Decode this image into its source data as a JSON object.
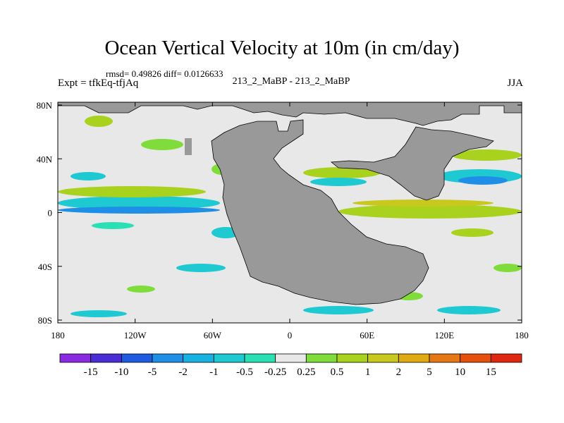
{
  "header": {
    "title": "Ocean Vertical Velocity at 10m (in cm/day)",
    "stats": "rmsd= 0.49826 diff= 0.0126633",
    "expt": "Expt = tfkEq-tfjAq",
    "case": "213_2_MaBP - 213_2_MaBP",
    "season": "JJA"
  },
  "chart_data": {
    "type": "heatmap",
    "title": "Ocean Vertical Velocity at 10m (in cm/day)",
    "x_ticks": [
      "180",
      "120W",
      "60W",
      "0",
      "60E",
      "120E",
      "180"
    ],
    "y_ticks": [
      "80N",
      "40N",
      "0",
      "40S",
      "80S"
    ],
    "xlim": [
      -180,
      180
    ],
    "ylim": [
      -90,
      90
    ],
    "colorbar": {
      "labels": [
        "-15",
        "-10",
        "-5",
        "-2",
        "-1",
        "-0.5",
        "-0.25",
        "0.25",
        "0.5",
        "1",
        "2",
        "5",
        "10",
        "15"
      ],
      "colors": [
        "#8a2be2",
        "#4b2dd6",
        "#1e5be0",
        "#1e8ee6",
        "#16b2e0",
        "#1ec9d2",
        "#28e0b4",
        "#e8e8e8",
        "#7fdc3a",
        "#a8d21e",
        "#c8c81e",
        "#e0aa14",
        "#e67814",
        "#e6500f",
        "#e02810"
      ]
    },
    "land_color": "#999999",
    "background_color": "#e8e8e8"
  }
}
